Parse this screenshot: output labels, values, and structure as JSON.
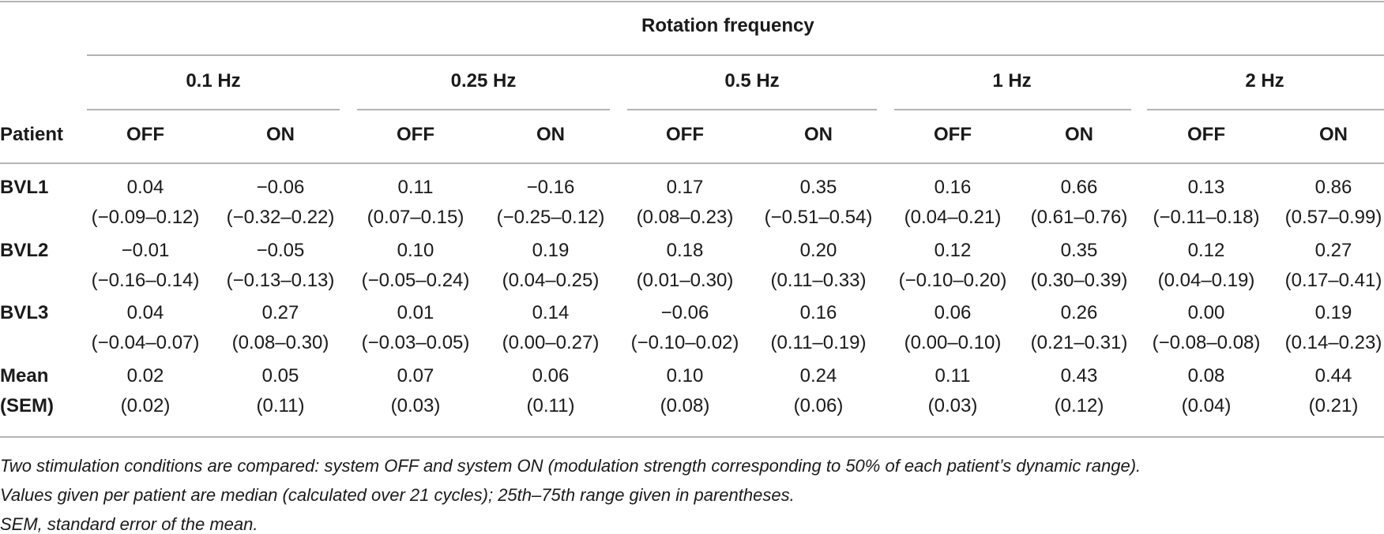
{
  "header": {
    "title": "Rotation frequency",
    "patient_label": "Patient",
    "frequencies": [
      "0.1 Hz",
      "0.25 Hz",
      "0.5 Hz",
      "1 Hz",
      "2 Hz"
    ],
    "conditions": [
      "OFF",
      "ON",
      "OFF",
      "ON",
      "OFF",
      "ON",
      "OFF",
      "ON",
      "OFF",
      "ON"
    ]
  },
  "rows": [
    {
      "patient": "BVL1",
      "cells": [
        {
          "median": "0.04",
          "range": "(−0.09–0.12)"
        },
        {
          "median": "−0.06",
          "range": "(−0.32–0.22)"
        },
        {
          "median": "0.11",
          "range": "(0.07–0.15)"
        },
        {
          "median": "−0.16",
          "range": "(−0.25–0.12)"
        },
        {
          "median": "0.17",
          "range": "(0.08–0.23)"
        },
        {
          "median": "0.35",
          "range": "(−0.51–0.54)"
        },
        {
          "median": "0.16",
          "range": "(0.04–0.21)"
        },
        {
          "median": "0.66",
          "range": "(0.61–0.76)"
        },
        {
          "median": "0.13",
          "range": "(−0.11–0.18)"
        },
        {
          "median": "0.86",
          "range": "(0.57–0.99)"
        }
      ]
    },
    {
      "patient": "BVL2",
      "cells": [
        {
          "median": "−0.01",
          "range": "(−0.16–0.14)"
        },
        {
          "median": "−0.05",
          "range": "(−0.13–0.13)"
        },
        {
          "median": "0.10",
          "range": "(−0.05–0.24)"
        },
        {
          "median": "0.19",
          "range": "(0.04–0.25)"
        },
        {
          "median": "0.18",
          "range": "(0.01–0.30)"
        },
        {
          "median": "0.20",
          "range": "(0.11–0.33)"
        },
        {
          "median": "0.12",
          "range": "(−0.10–0.20)"
        },
        {
          "median": "0.35",
          "range": "(0.30–0.39)"
        },
        {
          "median": "0.12",
          "range": "(0.04–0.19)"
        },
        {
          "median": "0.27",
          "range": "(0.17–0.41)"
        }
      ]
    },
    {
      "patient": "BVL3",
      "cells": [
        {
          "median": "0.04",
          "range": "(−0.04–0.07)"
        },
        {
          "median": "0.27",
          "range": "(0.08–0.30)"
        },
        {
          "median": "0.01",
          "range": "(−0.03–0.05)"
        },
        {
          "median": "0.14",
          "range": "(0.00–0.27)"
        },
        {
          "median": "−0.06",
          "range": "(−0.10–0.02)"
        },
        {
          "median": "0.16",
          "range": "(0.11–0.19)"
        },
        {
          "median": "0.06",
          "range": "(0.00–0.10)"
        },
        {
          "median": "0.26",
          "range": "(0.21–0.31)"
        },
        {
          "median": "0.00",
          "range": "(−0.08–0.08)"
        },
        {
          "median": "0.19",
          "range": "(0.14–0.23)"
        }
      ]
    }
  ],
  "mean_row": {
    "label": "Mean",
    "sublabel": "(SEM)",
    "cells": [
      {
        "median": "0.02",
        "range": "(0.02)"
      },
      {
        "median": "0.05",
        "range": "(0.11)"
      },
      {
        "median": "0.07",
        "range": "(0.03)"
      },
      {
        "median": "0.06",
        "range": "(0.11)"
      },
      {
        "median": "0.10",
        "range": "(0.08)"
      },
      {
        "median": "0.24",
        "range": "(0.06)"
      },
      {
        "median": "0.11",
        "range": "(0.03)"
      },
      {
        "median": "0.43",
        "range": "(0.12)"
      },
      {
        "median": "0.08",
        "range": "(0.04)"
      },
      {
        "median": "0.44",
        "range": "(0.21)"
      }
    ]
  },
  "footnotes": [
    "Two stimulation conditions are compared: system OFF and system ON (modulation strength corresponding to 50% of each patient’s dynamic range).",
    "Values given per patient are median (calculated over 21 cycles); 25th–75th range given in parentheses.",
    "SEM, standard error of the mean."
  ]
}
